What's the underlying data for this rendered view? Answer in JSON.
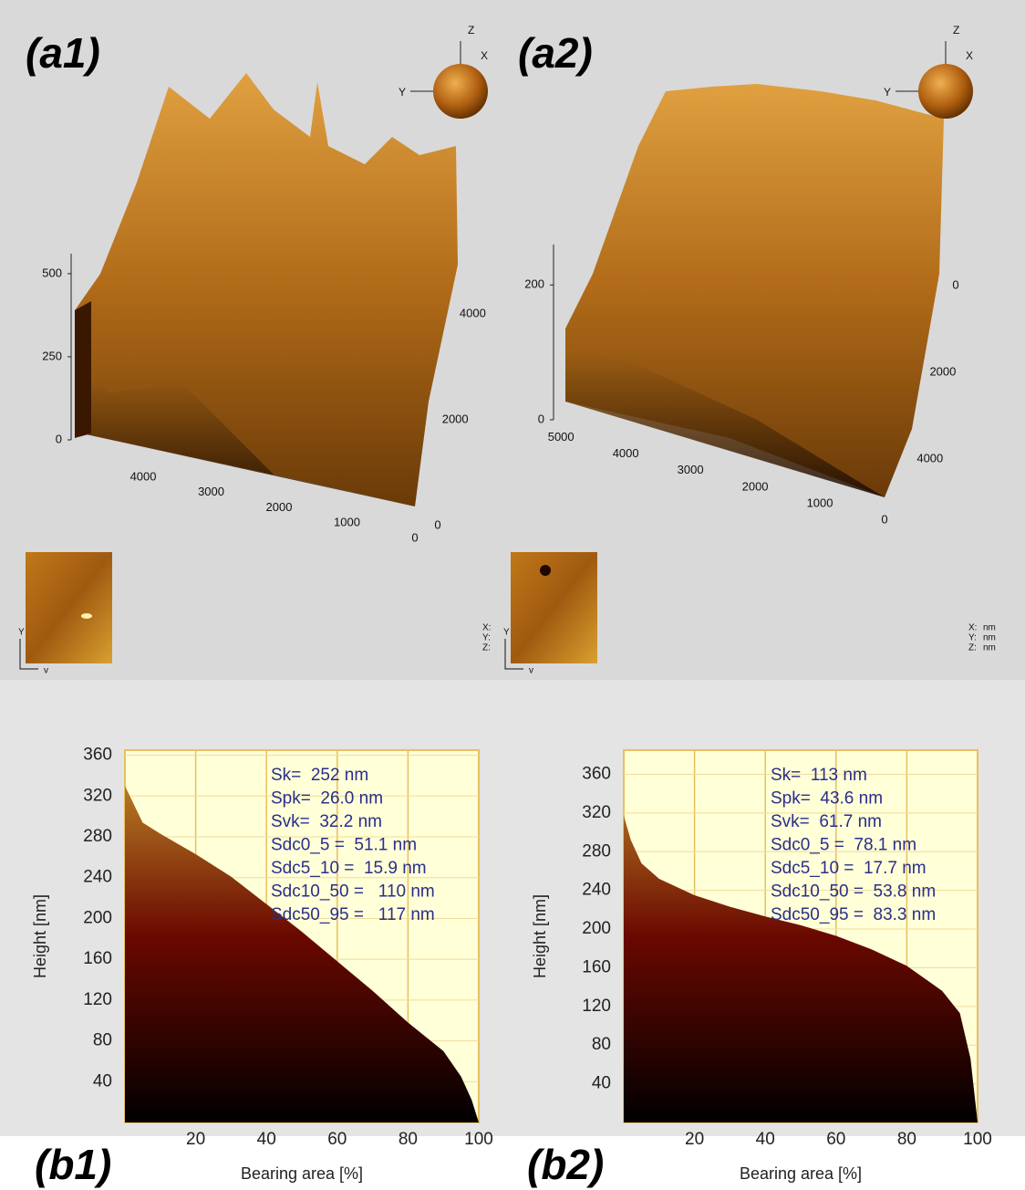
{
  "chart_data": [
    {
      "type": "surface3d",
      "title": "(a1)",
      "zlim": [
        0,
        560
      ],
      "zticks": [
        0,
        250,
        500
      ],
      "xlim": [
        0,
        4900
      ],
      "xticks": [
        0,
        1000,
        2000,
        3000,
        4000
      ],
      "ylim": [
        0,
        4900
      ],
      "yticks": [
        0,
        2000,
        4000
      ],
      "axis_letters": [
        "Z",
        "X",
        "Y"
      ],
      "thumb_axes": [
        "Y",
        "v"
      ],
      "unit_axes": [
        "X:",
        "Y:",
        "Z:"
      ]
    },
    {
      "type": "surface3d",
      "title": "(a2)",
      "zlim": [
        0,
        260
      ],
      "zticks": [
        0,
        200
      ],
      "xlim": [
        0,
        5200
      ],
      "xticks": [
        0,
        1000,
        2000,
        3000,
        4000,
        5000
      ],
      "ylim": [
        0,
        4400
      ],
      "yticks": [
        0,
        2000,
        4000
      ],
      "axis_letters": [
        "Z",
        "X",
        "Y"
      ],
      "thumb_axes": [
        "Y",
        "v"
      ],
      "unit_axes": [
        "X:",
        "Y:",
        "Z:"
      ],
      "units": [
        "nm",
        "nm",
        "nm"
      ]
    },
    {
      "type": "area",
      "title": "(b1)",
      "x_label": "Bearing area [%]",
      "y_label": "Height [nm]",
      "x": [
        0,
        5,
        10,
        20,
        30,
        40,
        50,
        60,
        70,
        80,
        90,
        95,
        98,
        100
      ],
      "values": [
        330,
        294,
        283,
        263,
        241,
        214,
        187,
        158,
        129,
        98,
        70,
        45,
        22,
        0
      ],
      "xlim": [
        0,
        100
      ],
      "xticks": [
        20,
        40,
        60,
        80,
        100
      ],
      "ylim": [
        0,
        365
      ],
      "yticks": [
        40,
        80,
        120,
        160,
        200,
        240,
        280,
        320,
        360
      ],
      "grid": true,
      "colors": [
        "#c8962c",
        "#6a0800",
        "#000000"
      ],
      "annotations": [
        "Sk=  252 nm",
        "Spk=  26.0 nm",
        "Svk=  32.2 nm",
        "Sdc0_5 =  51.1 nm",
        "Sdc5_10 =  15.9 nm",
        "Sdc10_50 =   110 nm",
        "Sdc50_95 =   117 nm"
      ]
    },
    {
      "type": "area",
      "title": "(b2)",
      "x_label": "Bearing area [%]",
      "y_label": "Height [nm]",
      "x": [
        0,
        2,
        5,
        10,
        20,
        30,
        40,
        50,
        60,
        70,
        80,
        90,
        95,
        98,
        100
      ],
      "values": [
        317,
        292,
        268,
        252,
        235,
        223,
        213,
        204,
        193,
        179,
        162,
        136,
        113,
        66,
        0
      ],
      "xlim": [
        0,
        100
      ],
      "xticks": [
        20,
        40,
        60,
        80,
        100
      ],
      "ylim": [
        0,
        385
      ],
      "yticks": [
        40,
        80,
        120,
        160,
        200,
        240,
        280,
        320,
        360
      ],
      "grid": true,
      "colors": [
        "#c8962c",
        "#6a0800",
        "#000000"
      ],
      "annotations": [
        "Sk=  113 nm",
        "Spk=  43.6 nm",
        "Svk=  61.7 nm",
        "Sdc0_5 =  78.1 nm",
        "Sdc5_10 =  17.7 nm",
        "Sdc10_50 =  53.8 nm",
        "Sdc50_95 =  83.3 nm"
      ]
    }
  ]
}
